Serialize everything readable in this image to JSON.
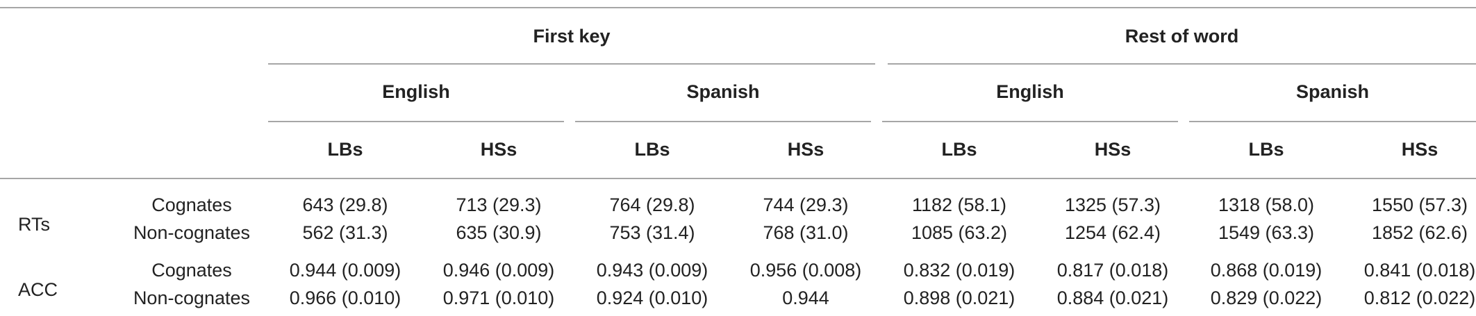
{
  "table": {
    "groups": [
      {
        "label": "First key",
        "languages": [
          {
            "label": "English",
            "columns": [
              "LBs",
              "HSs"
            ]
          },
          {
            "label": "Spanish",
            "columns": [
              "LBs",
              "HSs"
            ]
          }
        ]
      },
      {
        "label": "Rest of word",
        "languages": [
          {
            "label": "English",
            "columns": [
              "LBs",
              "HSs"
            ]
          },
          {
            "label": "Spanish",
            "columns": [
              "LBs",
              "HSs"
            ]
          }
        ]
      }
    ],
    "rows": [
      {
        "measure": "RTs",
        "conditions": [
          {
            "label": "Cognates",
            "cells": [
              "643 (29.8)",
              "713 (29.3)",
              "764 (29.8)",
              "744 (29.3)",
              "1182 (58.1)",
              "1325 (57.3)",
              "1318 (58.0)",
              "1550 (57.3)"
            ]
          },
          {
            "label": "Non-cognates",
            "cells": [
              "562 (31.3)",
              "635 (30.9)",
              "753 (31.4)",
              "768 (31.0)",
              "1085 (63.2)",
              "1254 (62.4)",
              "1549 (63.3)",
              "1852 (62.6)"
            ]
          }
        ]
      },
      {
        "measure": "ACC",
        "conditions": [
          {
            "label": "Cognates",
            "cells": [
              "0.944 (0.009)",
              "0.946 (0.009)",
              "0.943 (0.009)",
              "0.956 (0.008)",
              "0.832 (0.019)",
              "0.817 (0.018)",
              "0.868 (0.019)",
              "0.841 (0.018)"
            ]
          },
          {
            "label": "Non-cognates",
            "cells": [
              "0.966 (0.010)",
              "0.971 (0.010)",
              "0.924 (0.010)",
              "0.944",
              "0.898 (0.021)",
              "0.884 (0.021)",
              "0.829 (0.022)",
              "0.812 (0.022)"
            ]
          }
        ]
      }
    ]
  }
}
